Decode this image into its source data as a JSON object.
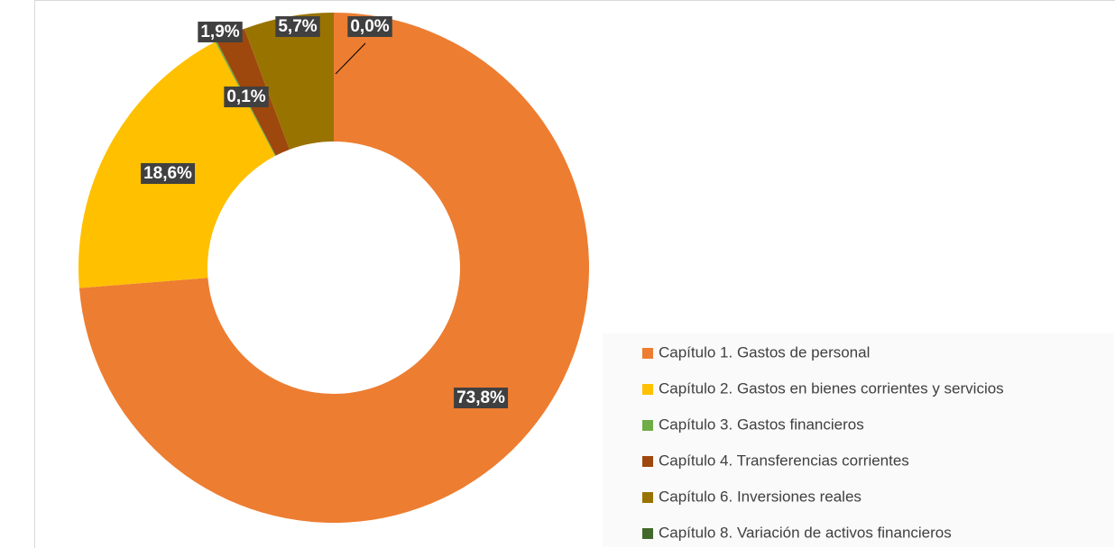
{
  "chart_data": {
    "type": "donut",
    "categories": [
      "Capítulo 1. Gastos de personal",
      "Capítulo 2. Gastos en bienes corrientes y servicios",
      "Capítulo 3. Gastos financieros",
      "Capítulo 4. Transferencias corrientes",
      "Capítulo 6. Inversiones reales",
      "Capítulo 8. Variación de activos financieros"
    ],
    "values": [
      73.8,
      18.6,
      0.1,
      1.9,
      5.7,
      0.0
    ],
    "value_labels": [
      "73,8%",
      "18,6%",
      "0,1%",
      "1,9%",
      "5,7%",
      "0,0%"
    ],
    "colors": [
      "#ED7D31",
      "#FFC000",
      "#70AD47",
      "#9E480E",
      "#997300",
      "#43682B"
    ],
    "legend": "bottom-right"
  }
}
